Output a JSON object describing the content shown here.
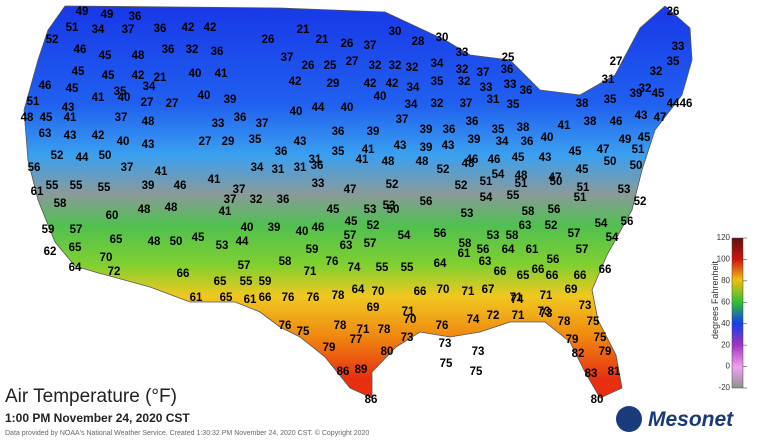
{
  "title": "Air Temperature (°F)",
  "timestamp": "1:00 PM November 24, 2020 CST",
  "credit": "Data provided by NOAA's National Weather Service. Created 1:30:32 PM November 24, 2020 CST. © Copyright 2020",
  "logo": "Mesonet",
  "colorbar": {
    "label": "degrees Fahrenheit",
    "lim": [
      120,
      -20
    ],
    "ticks": [
      120,
      100,
      80,
      60,
      40,
      20,
      0,
      -20
    ]
  },
  "stations": [
    49,
    49,
    36,
    52,
    51,
    34,
    37,
    36,
    42,
    42,
    26,
    21,
    21,
    26,
    37,
    30,
    28,
    30,
    33,
    25,
    26,
    33,
    35,
    46,
    45,
    48,
    36,
    32,
    36,
    37,
    26,
    25,
    27,
    32,
    32,
    32,
    34,
    32,
    37,
    36,
    27,
    32,
    45,
    45,
    42,
    21,
    40,
    41,
    31,
    32,
    46,
    45,
    35,
    34,
    42,
    29,
    42,
    42,
    34,
    35,
    32,
    33,
    33,
    36,
    51,
    43,
    41,
    40,
    27,
    27,
    40,
    39,
    40,
    44,
    40,
    40,
    34,
    32,
    37,
    31,
    35,
    38,
    35,
    39,
    45,
    44,
    46,
    48,
    45,
    41,
    37,
    48,
    33,
    36,
    37,
    36,
    39,
    37,
    39,
    36,
    36,
    35,
    38,
    41,
    38,
    46,
    43,
    47,
    63,
    43,
    42,
    40,
    43,
    27,
    29,
    35,
    43,
    35,
    41,
    43,
    39,
    43,
    39,
    34,
    36,
    40,
    49,
    45,
    52,
    44,
    50,
    36,
    31,
    46,
    46,
    45,
    43,
    45,
    47,
    56,
    37,
    41,
    34,
    31,
    31,
    36,
    41,
    48,
    48,
    52,
    48,
    54,
    48,
    47,
    45,
    50,
    51,
    50,
    55,
    55,
    55,
    39,
    46,
    41,
    37,
    33,
    52,
    52,
    51,
    51,
    50,
    51,
    53,
    61,
    58,
    37,
    32,
    36,
    47,
    53,
    56,
    54,
    55,
    51,
    52,
    48,
    48,
    41,
    45,
    45,
    53,
    50,
    53,
    58,
    56,
    54,
    56,
    60,
    59,
    57,
    40,
    39,
    40,
    46,
    57,
    52,
    54,
    56,
    58,
    53,
    58,
    63,
    52,
    57,
    54,
    65,
    48,
    50,
    45,
    53,
    44,
    59,
    63,
    57,
    56,
    64,
    61,
    57,
    65,
    62,
    70,
    64,
    57,
    58,
    76,
    74,
    55,
    55,
    64,
    61,
    63,
    66,
    56,
    66,
    66,
    72,
    71,
    66,
    65,
    55,
    59,
    66,
    65,
    66,
    70,
    64,
    78,
    76,
    76,
    66,
    61,
    65,
    61,
    66,
    70,
    71,
    67,
    71,
    71,
    69,
    69,
    71,
    74,
    73,
    73,
    76,
    75,
    78,
    71,
    78,
    70,
    73,
    76,
    74,
    72,
    71,
    73,
    78,
    75,
    79,
    75,
    79,
    77,
    80,
    73,
    73,
    82,
    79,
    86,
    89,
    75,
    75,
    83,
    81,
    86,
    80
  ]
}
